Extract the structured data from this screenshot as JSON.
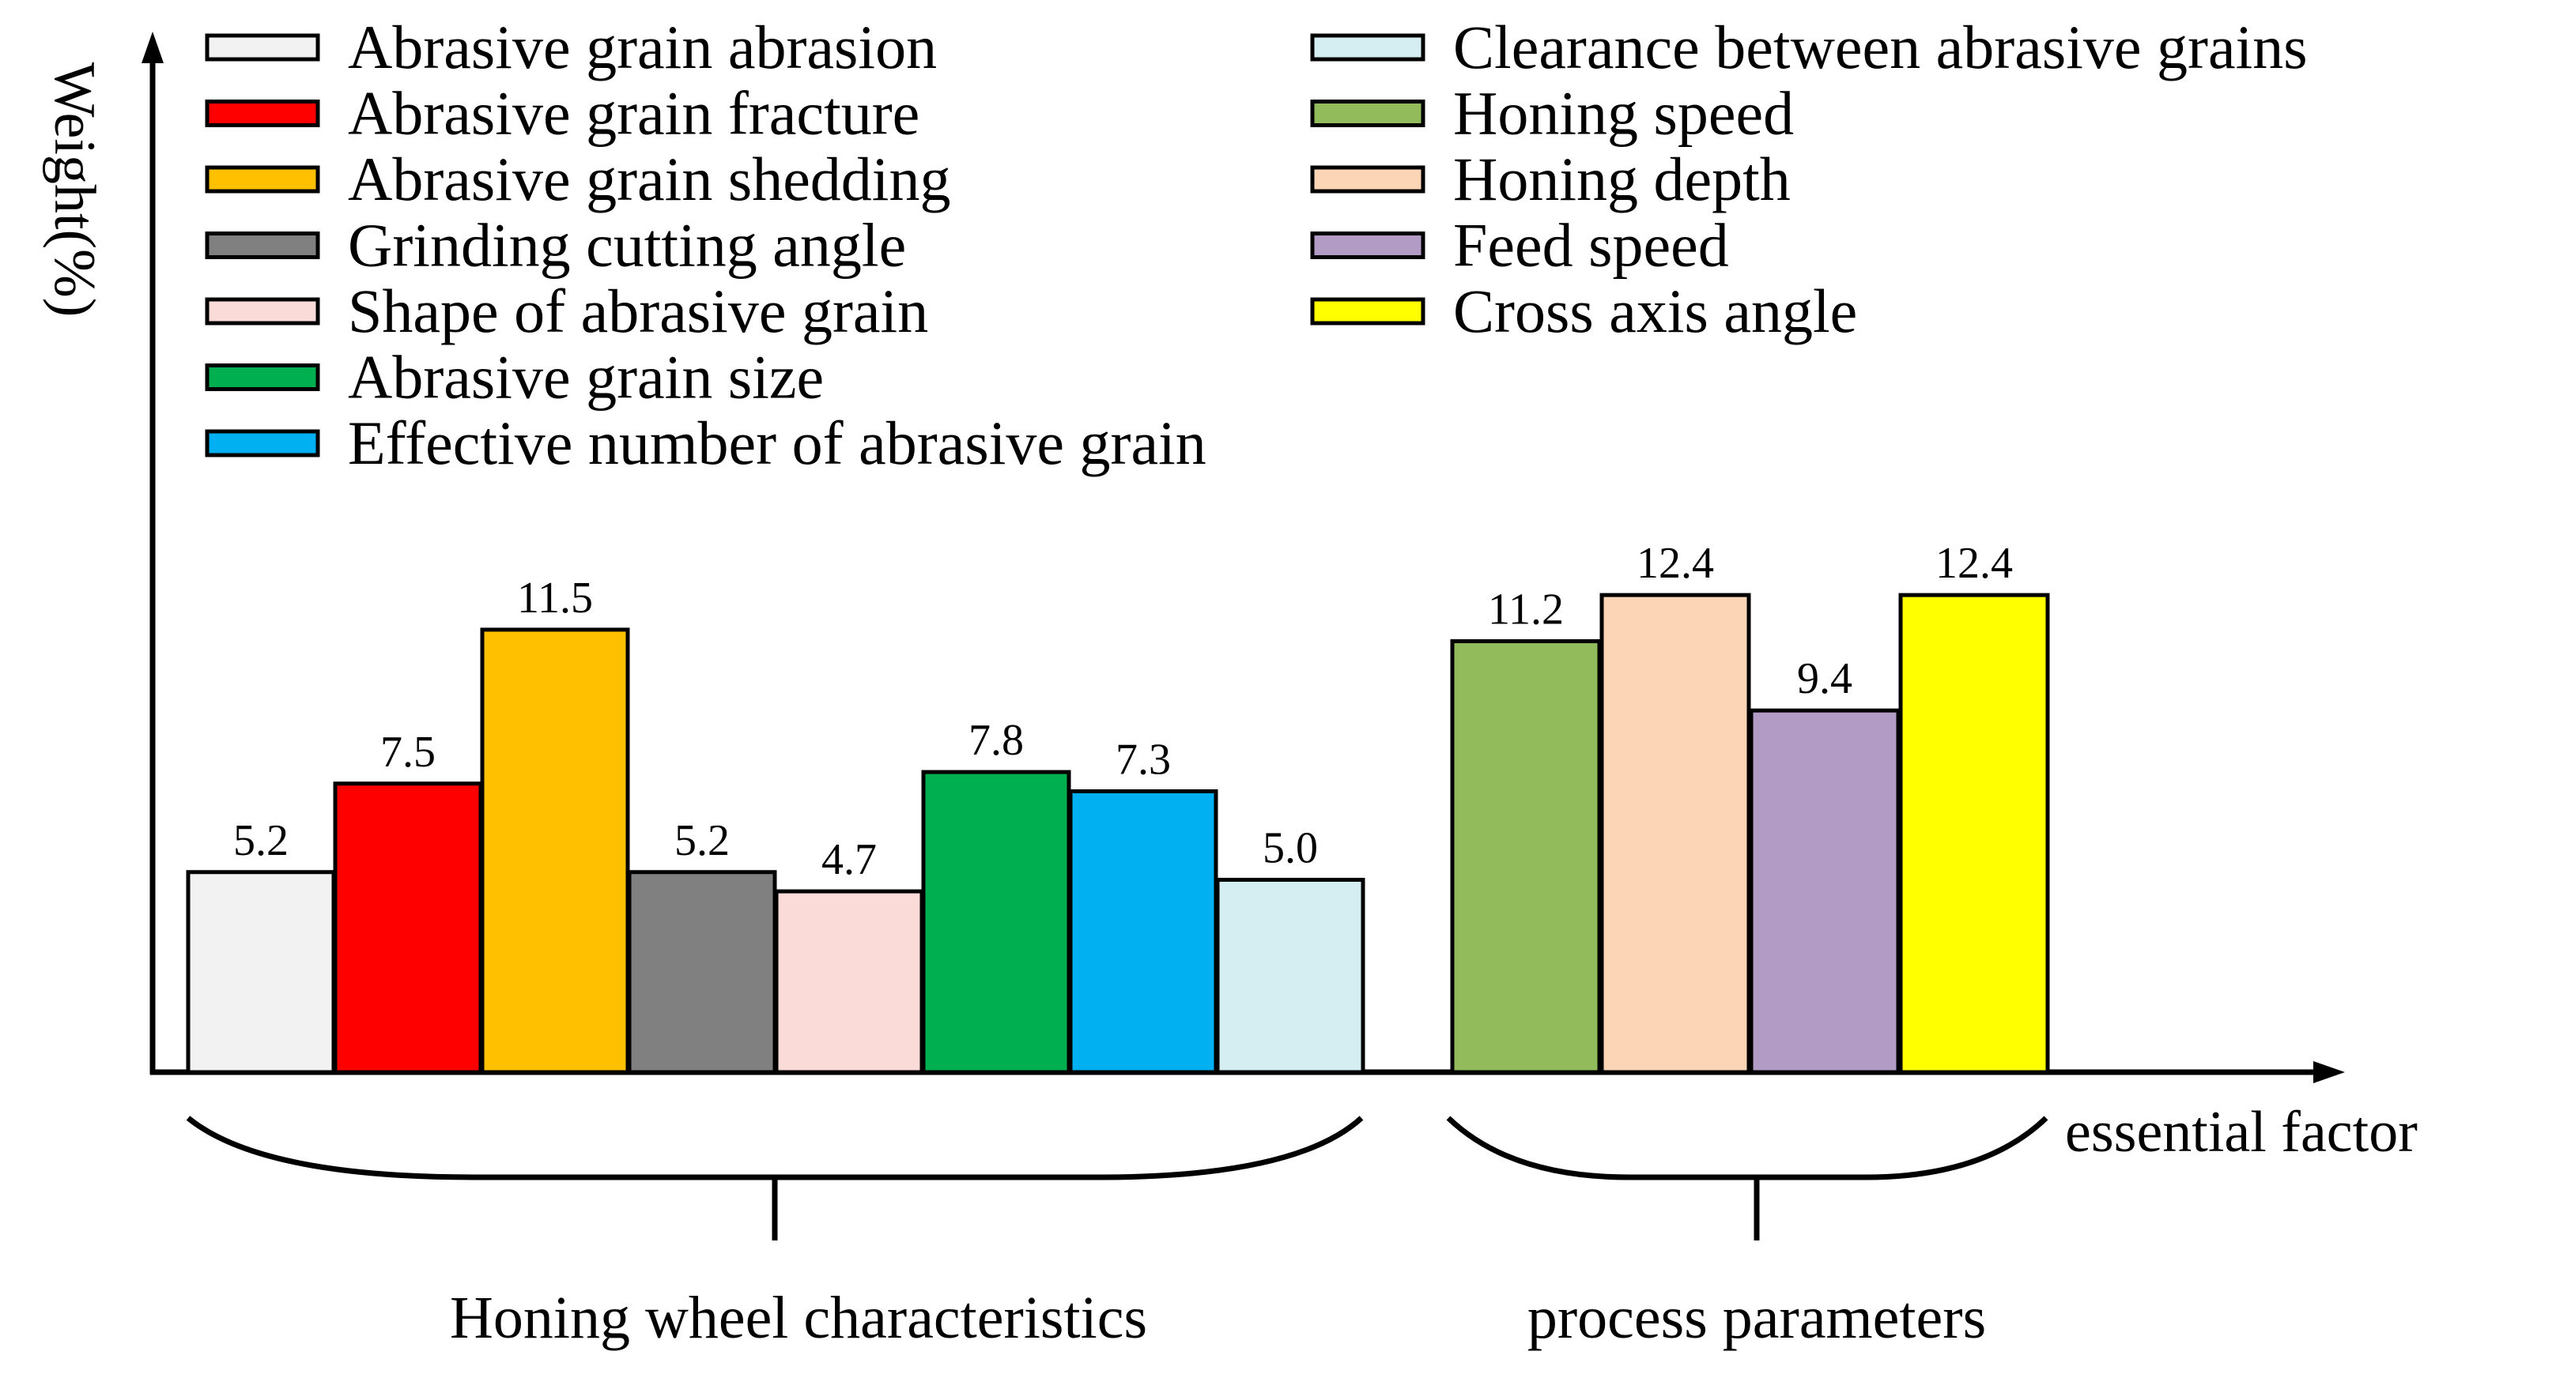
{
  "chart_data": {
    "type": "bar",
    "title": "",
    "ylabel": "Weight(%)",
    "xlabel": "essential factor",
    "ylim": [
      0,
      26
    ],
    "grid": false,
    "legend_position": "top",
    "groups": [
      {
        "name": "Honing wheel characteristics",
        "categories": [
          "Abrasive grain abrasion",
          "Abrasive grain fracture",
          "Abrasive grain shedding",
          "Grinding cutting angle",
          "Shape of abrasive grain",
          "Abrasive grain size",
          "Effective number of abrasive grain",
          "Clearance between abrasive grains"
        ],
        "values": [
          5.2,
          7.5,
          11.5,
          5.2,
          4.7,
          7.8,
          7.3,
          5.0
        ],
        "value_labels": [
          "5.2",
          "7.5",
          "11.5",
          "5.2",
          "4.7",
          "7.8",
          "7.3",
          "5.0"
        ],
        "colors": [
          "#f2f2f2",
          "#ff0000",
          "#ffc000",
          "#808080",
          "#fadbd8",
          "#00b050",
          "#00b0f0",
          "#d5eef2"
        ]
      },
      {
        "name": "process parameters",
        "categories": [
          "Honing speed",
          "Honing depth",
          "Feed speed",
          "Cross axis angle"
        ],
        "values": [
          11.2,
          12.4,
          9.4,
          12.4
        ],
        "value_labels": [
          "11.2",
          "12.4",
          "9.4",
          "12.4"
        ],
        "colors": [
          "#92bc5c",
          "#fbd5b5",
          "#b29cc6",
          "#ffff00"
        ]
      }
    ],
    "legend": {
      "column_1": [
        {
          "label": "Abrasive grain abrasion",
          "color": "#f2f2f2"
        },
        {
          "label": "Abrasive grain fracture",
          "color": "#ff0000"
        },
        {
          "label": "Abrasive grain shedding",
          "color": "#ffc000"
        },
        {
          "label": "Grinding cutting angle",
          "color": "#808080"
        },
        {
          "label": "Shape of abrasive grain",
          "color": "#fadbd8"
        },
        {
          "label": "Abrasive grain size",
          "color": "#00b050"
        },
        {
          "label": "Effective number of abrasive grain",
          "color": "#00b0f0"
        }
      ],
      "column_2": [
        {
          "label": "Clearance between abrasive grains",
          "color": "#d5eef2"
        },
        {
          "label": "Honing speed",
          "color": "#92bc5c"
        },
        {
          "label": "Honing depth",
          "color": "#fbd5b5"
        },
        {
          "label": "Feed speed",
          "color": "#b29cc6"
        },
        {
          "label": "Cross axis angle",
          "color": "#ffff00"
        }
      ]
    }
  }
}
